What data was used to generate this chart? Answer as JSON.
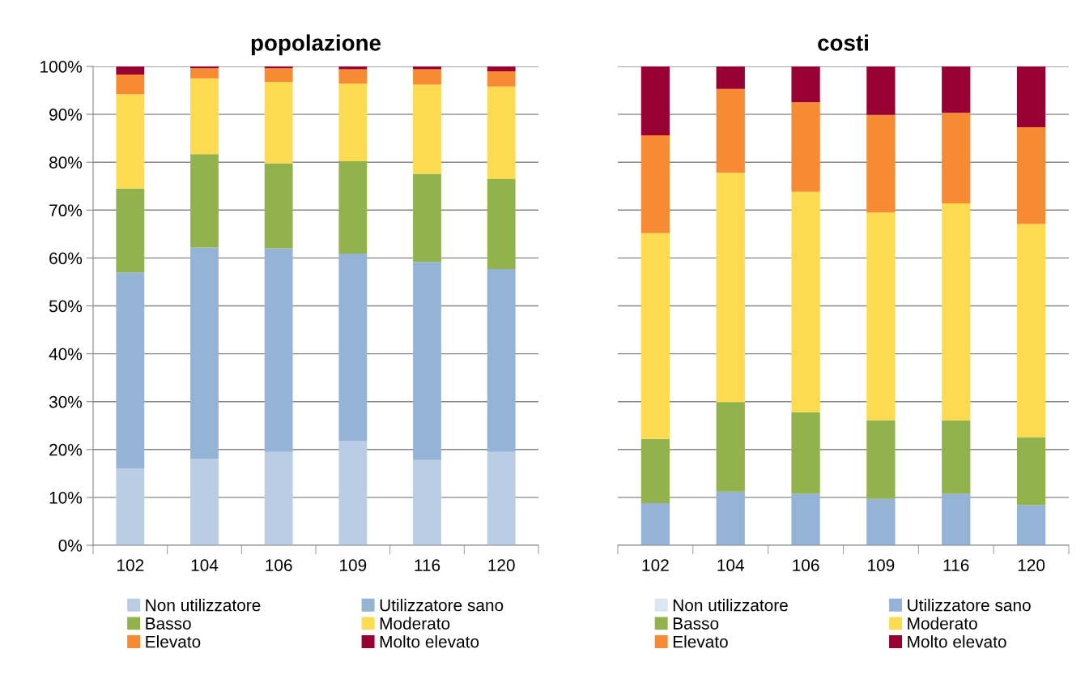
{
  "chart_data": [
    {
      "type": "bar",
      "title": "popolazione",
      "stacked": true,
      "categories": [
        "102",
        "104",
        "106",
        "109",
        "116",
        "120"
      ],
      "ylim": [
        0,
        1
      ],
      "yticks": [
        {
          "value": 0,
          "label": "0%"
        },
        {
          "value": 0.1,
          "label": "10%"
        },
        {
          "value": 0.2,
          "label": "20%"
        },
        {
          "value": 0.3,
          "label": "30%"
        },
        {
          "value": 0.4,
          "label": "40%"
        },
        {
          "value": 0.5,
          "label": "50%"
        },
        {
          "value": 0.6,
          "label": "60%"
        },
        {
          "value": 0.7,
          "label": "70%"
        },
        {
          "value": 0.8,
          "label": "80%"
        },
        {
          "value": 0.9,
          "label": "90%"
        },
        {
          "value": 1,
          "label": "100%"
        }
      ],
      "grid": "y",
      "legend": "bottom",
      "series": [
        {
          "name": "Non utilizzatore",
          "color": "#b9cde5",
          "values": [
            0.16,
            0.18,
            0.195,
            0.218,
            0.178,
            0.195
          ]
        },
        {
          "name": "Utilizzatore sano",
          "color": "#95b3d7",
          "values": [
            0.41,
            0.442,
            0.425,
            0.391,
            0.414,
            0.382
          ]
        },
        {
          "name": "Basso",
          "color": "#92b24c",
          "values": [
            0.175,
            0.195,
            0.178,
            0.193,
            0.184,
            0.188
          ]
        },
        {
          "name": "Moderato",
          "color": "#fddb50",
          "values": [
            0.197,
            0.158,
            0.17,
            0.162,
            0.186,
            0.193
          ]
        },
        {
          "name": "Elevato",
          "color": "#f68b33",
          "values": [
            0.041,
            0.021,
            0.028,
            0.03,
            0.032,
            0.032
          ]
        },
        {
          "name": "Molto elevato",
          "color": "#990033",
          "values": [
            0.017,
            0.004,
            0.004,
            0.006,
            0.006,
            0.01
          ]
        }
      ]
    },
    {
      "type": "bar",
      "title": "costi",
      "stacked": true,
      "categories": [
        "102",
        "104",
        "106",
        "109",
        "116",
        "120"
      ],
      "ylim": [
        0,
        1
      ],
      "yticks": [
        {
          "value": 0,
          "label": null
        },
        {
          "value": 0.1,
          "label": null
        },
        {
          "value": 0.2,
          "label": null
        },
        {
          "value": 0.3,
          "label": null
        },
        {
          "value": 0.4,
          "label": null
        },
        {
          "value": 0.5,
          "label": null
        },
        {
          "value": 0.6,
          "label": null
        },
        {
          "value": 0.7,
          "label": null
        },
        {
          "value": 0.8,
          "label": null
        },
        {
          "value": 0.9,
          "label": null
        },
        {
          "value": 1,
          "label": null
        }
      ],
      "tick_labels": "x",
      "grid": "y",
      "legend": "bottom",
      "series": [
        {
          "name": "Non utilizzatore",
          "color": "#dce6f2",
          "values": [
            0,
            0,
            0,
            0,
            0,
            0
          ]
        },
        {
          "name": "Utilizzatore sano",
          "color": "#95b3d7",
          "values": [
            0.088,
            0.112,
            0.108,
            0.097,
            0.108,
            0.084
          ]
        },
        {
          "name": "Basso",
          "color": "#92b24c",
          "values": [
            0.134,
            0.187,
            0.17,
            0.164,
            0.153,
            0.142
          ]
        },
        {
          "name": "Moderato",
          "color": "#fddb50",
          "values": [
            0.43,
            0.479,
            0.46,
            0.434,
            0.453,
            0.445
          ]
        },
        {
          "name": "Elevato",
          "color": "#f68b33",
          "values": [
            0.204,
            0.175,
            0.187,
            0.204,
            0.189,
            0.202
          ]
        },
        {
          "name": "Molto elevato",
          "color": "#990033",
          "values": [
            0.144,
            0.047,
            0.075,
            0.101,
            0.097,
            0.127
          ]
        }
      ]
    }
  ]
}
